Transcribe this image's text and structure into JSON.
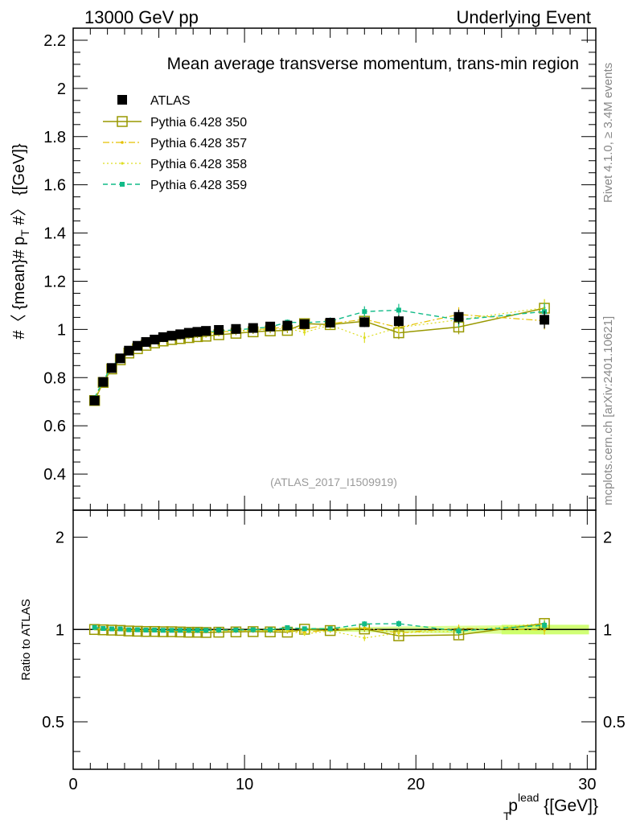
{
  "chart_data": {
    "type": "scatter",
    "header_left": "13000 GeV pp",
    "header_right": "Underlying Event",
    "title": "Mean average transverse momentum, trans-min region",
    "ylabel": "#〈 {mean}# p_T #〉 {[GeV]}",
    "ylabel_main": "#〈 {mean}# p",
    "ylabel_sub": "T",
    "ylabel_tail": " #〉 {[GeV]}",
    "xlabel_base": "p",
    "xlabel_sub": "T",
    "xlabel_sup": "lead",
    "xlabel_unit": " {[GeV]}",
    "ratio_ylabel": "Ratio to ATLAS",
    "side_label_top": "Rivet 4.1.0, ≥ 3.4M events",
    "side_label_bottom": "mcplots.cern.ch [arXiv:2401.10621]",
    "watermark": "(ATLAS_2017_I1509919)",
    "xlim": [
      0,
      30.5
    ],
    "ylim": [
      0.25,
      2.25
    ],
    "ratio_ylim": [
      0.35,
      2.45
    ],
    "x_ticks": [
      0,
      10,
      20,
      30
    ],
    "x_tick_labels": [
      "0",
      "10",
      "20",
      "30"
    ],
    "y_ticks": [
      0.4,
      0.6,
      0.8,
      1.0,
      1.2,
      1.4,
      1.6,
      1.8,
      2.0,
      2.2
    ],
    "y_tick_labels": [
      "0.4",
      "0.6",
      "0.8",
      "1",
      "1.2",
      "1.4",
      "1.6",
      "1.8",
      "2",
      "2.2"
    ],
    "ratio_ticks": [
      0.5,
      1,
      2
    ],
    "ratio_tick_labels": [
      "0.5",
      "1",
      "2"
    ],
    "ratio_tick_labels_right": [
      "0.5",
      "1",
      "2"
    ],
    "x": [
      1.25,
      1.75,
      2.25,
      2.75,
      3.25,
      3.75,
      4.25,
      4.75,
      5.25,
      5.75,
      6.25,
      6.75,
      7.25,
      7.75,
      8.5,
      9.5,
      10.5,
      11.5,
      12.5,
      13.5,
      15.0,
      17.0,
      19.0,
      22.5,
      27.5
    ],
    "series": [
      {
        "name": "ATLAS",
        "style": "data",
        "color": "#000000",
        "values": [
          0.705,
          0.782,
          0.84,
          0.88,
          0.912,
          0.932,
          0.948,
          0.958,
          0.968,
          0.974,
          0.98,
          0.986,
          0.99,
          0.994,
          0.998,
          1.002,
          1.006,
          1.012,
          1.016,
          1.022,
          1.028,
          1.03,
          1.034,
          1.052,
          1.04
        ],
        "errors": [
          0.006,
          0.005,
          0.005,
          0.005,
          0.005,
          0.005,
          0.005,
          0.005,
          0.005,
          0.005,
          0.005,
          0.005,
          0.005,
          0.005,
          0.006,
          0.007,
          0.008,
          0.009,
          0.01,
          0.012,
          0.014,
          0.02,
          0.024,
          0.03,
          0.036
        ]
      },
      {
        "name": "Pythia 6.428 350",
        "style": "open-square-solid",
        "color": "#999900",
        "values": [
          0.705,
          0.78,
          0.836,
          0.874,
          0.902,
          0.92,
          0.934,
          0.944,
          0.952,
          0.958,
          0.962,
          0.966,
          0.97,
          0.972,
          0.978,
          0.984,
          0.99,
          0.994,
          0.996,
          1.024,
          1.02,
          1.034,
          0.986,
          1.01,
          1.088
        ],
        "errors": [
          0.004,
          0.004,
          0.004,
          0.004,
          0.004,
          0.004,
          0.004,
          0.005,
          0.005,
          0.005,
          0.005,
          0.006,
          0.006,
          0.006,
          0.007,
          0.008,
          0.009,
          0.01,
          0.011,
          0.014,
          0.016,
          0.022,
          0.026,
          0.03,
          0.036
        ]
      },
      {
        "name": "Pythia 6.428 357",
        "style": "small-dashdot",
        "color": "#e5c000",
        "values": [
          0.712,
          0.786,
          0.842,
          0.88,
          0.908,
          0.928,
          0.942,
          0.952,
          0.96,
          0.966,
          0.972,
          0.976,
          0.98,
          0.984,
          0.99,
          0.994,
          0.998,
          1.004,
          1.01,
          1.0,
          1.024,
          1.042,
          1.008,
          1.062,
          1.036
        ],
        "errors": [
          0.004,
          0.004,
          0.004,
          0.004,
          0.004,
          0.004,
          0.004,
          0.005,
          0.005,
          0.005,
          0.005,
          0.006,
          0.006,
          0.006,
          0.007,
          0.008,
          0.009,
          0.01,
          0.011,
          0.014,
          0.016,
          0.022,
          0.026,
          0.03,
          0.036
        ]
      },
      {
        "name": "Pythia 6.428 358",
        "style": "small-dotted",
        "color": "#dddd22",
        "values": [
          0.708,
          0.784,
          0.84,
          0.878,
          0.906,
          0.926,
          0.94,
          0.95,
          0.958,
          0.964,
          0.97,
          0.976,
          0.98,
          0.984,
          0.988,
          0.992,
          0.996,
          1.0,
          1.004,
          0.988,
          1.018,
          0.966,
          1.008,
          1.04,
          1.09
        ],
        "errors": [
          0.004,
          0.004,
          0.004,
          0.004,
          0.004,
          0.004,
          0.004,
          0.005,
          0.005,
          0.005,
          0.005,
          0.006,
          0.006,
          0.006,
          0.007,
          0.008,
          0.009,
          0.01,
          0.011,
          0.014,
          0.016,
          0.022,
          0.026,
          0.03,
          0.036
        ]
      },
      {
        "name": "Pythia 6.428 359",
        "style": "filled-square-dashed",
        "color": "#11bb88",
        "values": [
          0.716,
          0.788,
          0.844,
          0.884,
          0.91,
          0.93,
          0.944,
          0.954,
          0.962,
          0.968,
          0.974,
          0.98,
          0.984,
          0.988,
          0.994,
          0.998,
          1.004,
          1.01,
          1.03,
          1.028,
          1.034,
          1.074,
          1.08,
          1.04,
          1.074
        ],
        "errors": [
          0.004,
          0.004,
          0.004,
          0.004,
          0.004,
          0.004,
          0.004,
          0.005,
          0.005,
          0.005,
          0.005,
          0.006,
          0.006,
          0.006,
          0.007,
          0.008,
          0.009,
          0.01,
          0.011,
          0.014,
          0.016,
          0.022,
          0.026,
          0.03,
          0.036
        ]
      }
    ],
    "colors": {
      "background": "#ffffff",
      "axis": "#000000",
      "ratio_band": "#ccff66"
    }
  }
}
